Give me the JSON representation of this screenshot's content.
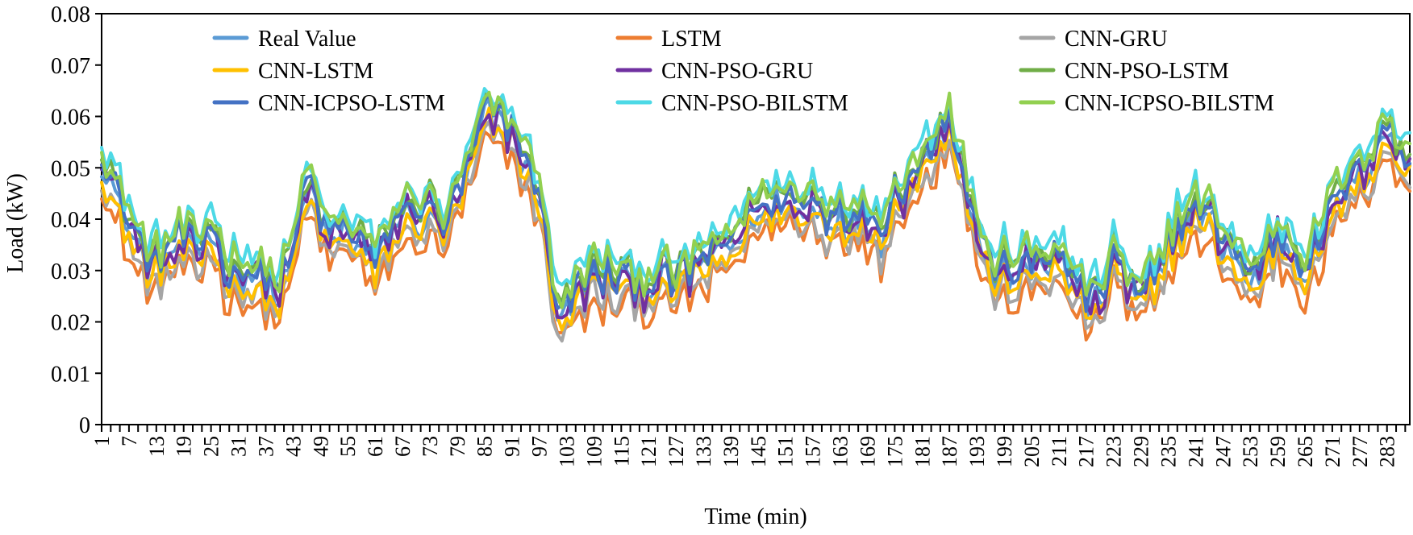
{
  "chart_data": {
    "type": "line",
    "title": "",
    "xlabel": "Time (min)",
    "ylabel": "Load (kW)",
    "ylim": [
      0,
      0.08
    ],
    "yticks": [
      0,
      0.01,
      0.02,
      0.03,
      0.04,
      0.05,
      0.06,
      0.07,
      0.08
    ],
    "ytick_labels": [
      "0",
      "0.01",
      "0.02",
      "0.03",
      "0.04",
      "0.05",
      "0.06",
      "0.07",
      "0.08"
    ],
    "xlim": [
      1,
      288
    ],
    "xticks": [
      1,
      7,
      13,
      19,
      25,
      31,
      37,
      43,
      49,
      55,
      61,
      67,
      73,
      79,
      85,
      91,
      97,
      103,
      109,
      115,
      121,
      127,
      133,
      139,
      145,
      151,
      157,
      163,
      169,
      175,
      181,
      187,
      193,
      199,
      205,
      211,
      217,
      223,
      229,
      235,
      241,
      247,
      253,
      259,
      265,
      271,
      277,
      283
    ],
    "grid": false,
    "legend_position": "top",
    "base_curve": {
      "x": [
        1,
        4,
        8,
        12,
        16,
        19,
        22,
        25,
        28,
        31,
        34,
        37,
        40,
        43,
        46,
        49,
        52,
        55,
        58,
        61,
        64,
        67,
        70,
        73,
        76,
        79,
        82,
        85,
        88,
        91,
        94,
        97,
        100,
        103,
        106,
        109,
        112,
        115,
        118,
        121,
        124,
        127,
        130,
        133,
        136,
        139,
        142,
        145,
        148,
        151,
        154,
        157,
        160,
        163,
        166,
        169,
        172,
        175,
        178,
        181,
        184,
        187,
        190,
        193,
        196,
        199,
        202,
        205,
        208,
        211,
        214,
        217,
        220,
        223,
        226,
        229,
        232,
        235,
        238,
        241,
        244,
        247,
        250,
        253,
        256,
        259,
        262,
        265,
        268,
        271,
        274,
        277,
        280,
        283,
        286,
        288
      ],
      "y": [
        0.051,
        0.045,
        0.036,
        0.03,
        0.033,
        0.035,
        0.032,
        0.038,
        0.03,
        0.028,
        0.029,
        0.027,
        0.025,
        0.033,
        0.047,
        0.038,
        0.036,
        0.037,
        0.035,
        0.03,
        0.036,
        0.04,
        0.04,
        0.041,
        0.038,
        0.043,
        0.05,
        0.06,
        0.058,
        0.057,
        0.05,
        0.045,
        0.025,
        0.021,
        0.026,
        0.028,
        0.027,
        0.028,
        0.027,
        0.026,
        0.028,
        0.026,
        0.029,
        0.031,
        0.032,
        0.035,
        0.038,
        0.042,
        0.041,
        0.045,
        0.04,
        0.043,
        0.039,
        0.042,
        0.038,
        0.04,
        0.037,
        0.044,
        0.046,
        0.05,
        0.055,
        0.06,
        0.048,
        0.038,
        0.029,
        0.03,
        0.029,
        0.03,
        0.032,
        0.031,
        0.028,
        0.024,
        0.022,
        0.034,
        0.025,
        0.024,
        0.027,
        0.035,
        0.038,
        0.041,
        0.04,
        0.035,
        0.032,
        0.027,
        0.032,
        0.036,
        0.034,
        0.03,
        0.035,
        0.041,
        0.046,
        0.048,
        0.052,
        0.058,
        0.05,
        0.051
      ]
    },
    "series": [
      {
        "name": "Real Value",
        "color": "#5b9bd5",
        "offset": 0.0,
        "noise": 0.0018
      },
      {
        "name": "LSTM",
        "color": "#ed7d31",
        "offset": -0.0045,
        "noise": 0.002
      },
      {
        "name": "CNN-GRU",
        "color": "#a5a5a5",
        "offset": -0.003,
        "noise": 0.0018
      },
      {
        "name": "CNN-LSTM",
        "color": "#ffc000",
        "offset": -0.0015,
        "noise": 0.0018
      },
      {
        "name": "CNN-PSO-GRU",
        "color": "#7030a0",
        "offset": 0.0005,
        "noise": 0.0028
      },
      {
        "name": "CNN-PSO-LSTM",
        "color": "#70ad47",
        "offset": 0.0025,
        "noise": 0.002
      },
      {
        "name": "CNN-ICPSO-LSTM",
        "color": "#4472c4",
        "offset": 0.0015,
        "noise": 0.0018
      },
      {
        "name": "CNN-PSO-BILSTM",
        "color": "#4dd9e6",
        "offset": 0.0045,
        "noise": 0.0022
      },
      {
        "name": "CNN-ICPSO-BILSTM",
        "color": "#92d050",
        "offset": 0.0035,
        "noise": 0.002
      }
    ]
  }
}
